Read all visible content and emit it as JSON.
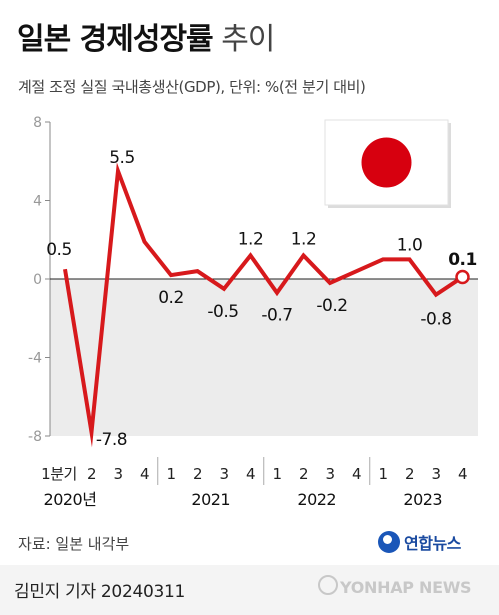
{
  "header": {
    "title_main": "일본 경제성장률",
    "title_sub": "추이",
    "subtitle": "계절 조정 실질 국내총생산(GDP), 단위: %(전 분기 대비)"
  },
  "chart_data": {
    "type": "line",
    "title": "일본 경제성장률 추이",
    "ylabel": "%",
    "ylim": [
      -8,
      8
    ],
    "yticks": [
      "8",
      "4",
      "0",
      "-4",
      "-8"
    ],
    "ytick_values": [
      8,
      4,
      0,
      -4,
      -8
    ],
    "categories": [
      "1분기",
      "2",
      "3",
      "4",
      "1",
      "2",
      "3",
      "4",
      "1",
      "2",
      "3",
      "4",
      "1",
      "2",
      "3",
      "4"
    ],
    "year_labels": [
      {
        "label": "2020년",
        "index": 0
      },
      {
        "label": "2021",
        "index": 5
      },
      {
        "label": "2022",
        "index": 9
      },
      {
        "label": "2023",
        "index": 13
      }
    ],
    "values": [
      0.5,
      -7.8,
      5.5,
      1.9,
      0.2,
      0.4,
      -0.5,
      1.2,
      -0.7,
      1.2,
      -0.2,
      0.4,
      1.0,
      1.0,
      -0.8,
      0.1
    ],
    "data_labels": [
      {
        "index": 0,
        "text": "0.5"
      },
      {
        "index": 1,
        "text": "-7.8"
      },
      {
        "index": 2,
        "text": "5.5"
      },
      {
        "index": 4,
        "text": "0.2"
      },
      {
        "index": 6,
        "text": "-0.5"
      },
      {
        "index": 7,
        "text": "1.2"
      },
      {
        "index": 8,
        "text": "-0.7"
      },
      {
        "index": 9,
        "text": "1.2"
      },
      {
        "index": 10,
        "text": "-0.2"
      },
      {
        "index": 13,
        "text": "1.0"
      },
      {
        "index": 14,
        "text": "-0.8"
      },
      {
        "index": 15,
        "text": "0.1"
      }
    ],
    "line_color": "#d7191c",
    "negative_fill": "#ececec",
    "grid": false
  },
  "footer": {
    "source": "자료: 일본 내각부",
    "logo_text": "연합뉴스",
    "byline": "김민지 기자  20240311",
    "agency": "YONHAP NEWS"
  }
}
